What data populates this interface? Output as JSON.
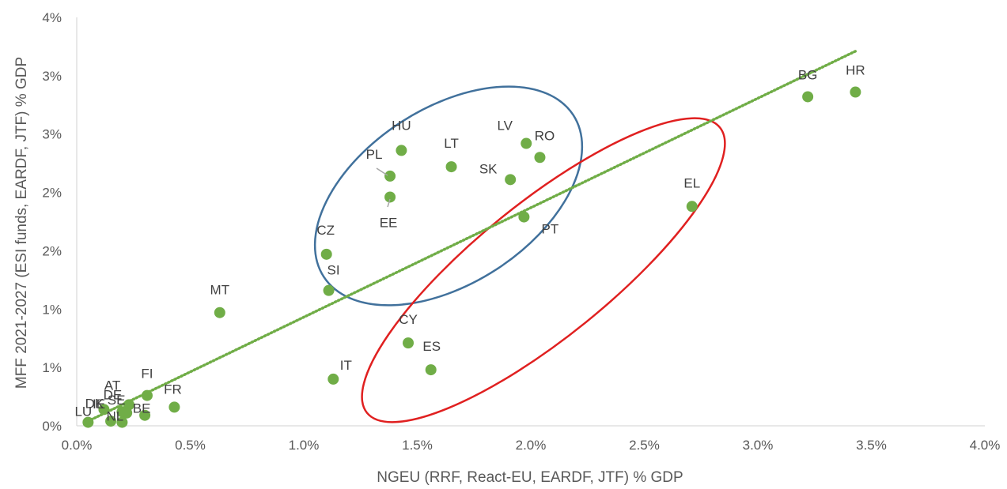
{
  "chart_data": {
    "type": "scatter",
    "xlabel": "NGEU (RRF, React-EU, EARDF, JTF) % GDP",
    "ylabel": "MFF 2021-2027 (ESI funds, EARDF, JTF) % GDP",
    "xlim": [
      0,
      0.04
    ],
    "ylim": [
      0,
      0.035
    ],
    "x_ticks": [
      "0.0%",
      "0.5%",
      "1.0%",
      "1.5%",
      "2.0%",
      "2.5%",
      "3.0%",
      "3.5%",
      "4.0%"
    ],
    "y_ticks": [
      "0%",
      "1%",
      "1%",
      "2%",
      "2%",
      "3%",
      "3%",
      "4%"
    ],
    "trendline": {
      "style": "dotted",
      "color": "#70ad47",
      "from": [
        0.0005,
        0.0004
      ],
      "to": [
        0.0343,
        0.0321
      ]
    },
    "marker_color": "#70ad47",
    "points": [
      {
        "label": "HR",
        "x": 0.0343,
        "y": 0.0286
      },
      {
        "label": "BG",
        "x": 0.0322,
        "y": 0.0282
      },
      {
        "label": "EL",
        "x": 0.0271,
        "y": 0.0188
      },
      {
        "label": "RO",
        "x": 0.0204,
        "y": 0.023
      },
      {
        "label": "LV",
        "x": 0.0198,
        "y": 0.0242
      },
      {
        "label": "PT",
        "x": 0.0197,
        "y": 0.0179
      },
      {
        "label": "SK",
        "x": 0.0191,
        "y": 0.0211
      },
      {
        "label": "LT",
        "x": 0.0165,
        "y": 0.0222
      },
      {
        "label": "HU",
        "x": 0.0143,
        "y": 0.0236
      },
      {
        "label": "PL",
        "x": 0.0138,
        "y": 0.0214
      },
      {
        "label": "EE",
        "x": 0.0138,
        "y": 0.0196
      },
      {
        "label": "CZ",
        "x": 0.011,
        "y": 0.0147
      },
      {
        "label": "SI",
        "x": 0.0111,
        "y": 0.0116
      },
      {
        "label": "ES",
        "x": 0.0156,
        "y": 0.0048
      },
      {
        "label": "CY",
        "x": 0.0146,
        "y": 0.0071
      },
      {
        "label": "IT",
        "x": 0.0113,
        "y": 0.004
      },
      {
        "label": "MT",
        "x": 0.0063,
        "y": 0.0097
      },
      {
        "label": "FR",
        "x": 0.0043,
        "y": 0.0016
      },
      {
        "label": "FI",
        "x": 0.0031,
        "y": 0.0026
      },
      {
        "label": "BE",
        "x": 0.003,
        "y": 0.0009
      },
      {
        "label": "AT",
        "x": 0.0023,
        "y": 0.0018
      },
      {
        "label": "SE",
        "x": 0.0022,
        "y": 0.0011
      },
      {
        "label": "DE",
        "x": 0.002,
        "y": 0.0012
      },
      {
        "label": "NL",
        "x": 0.002,
        "y": 0.0003
      },
      {
        "label": "IE",
        "x": 0.0015,
        "y": 0.0004
      },
      {
        "label": "DK",
        "x": 0.0012,
        "y": 0.0014
      },
      {
        "label": "LU",
        "x": 0.0005,
        "y": 0.0003
      }
    ],
    "highlight_groups": [
      {
        "color": "#41719c",
        "members": [
          "HU",
          "PL",
          "EE",
          "LT",
          "LV",
          "RO",
          "SK",
          "PT",
          "CZ",
          "SI"
        ]
      },
      {
        "color": "#e02020",
        "members": [
          "EL",
          "CY",
          "ES"
        ]
      }
    ]
  }
}
